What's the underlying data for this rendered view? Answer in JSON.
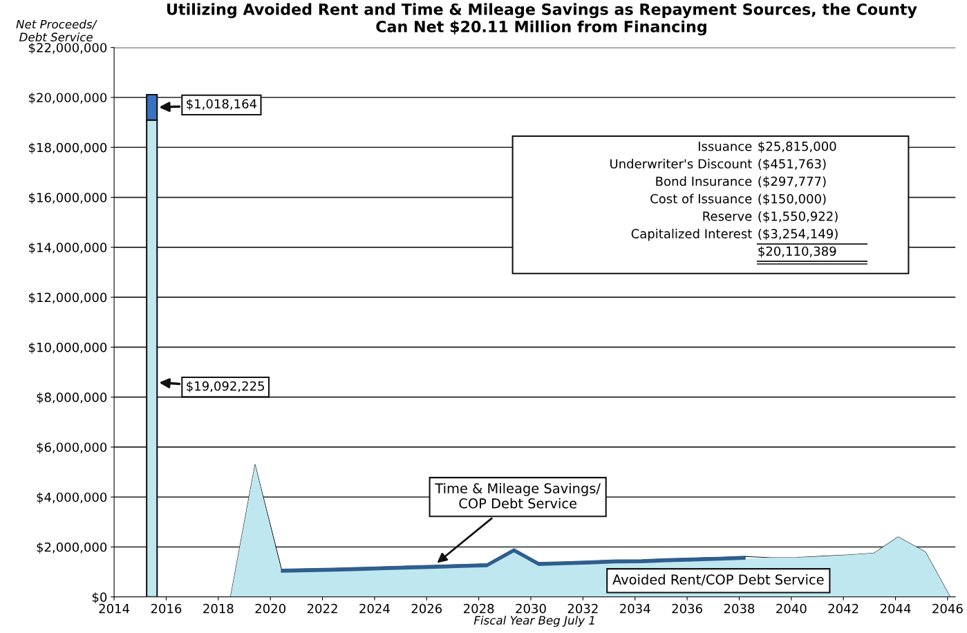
{
  "chart_data": {
    "type": "area",
    "title": "Utilizing Avoided Rent and Time & Mileage Savings as Repayment Sources, the County\nCan Net $20.11 Million from Financing",
    "ylabel": "Net Proceeds/\nDebt Service",
    "xlabel": "Fiscal Year Beg July 1",
    "stacked": true,
    "x": [
      2018.47,
      2019.41,
      2020.43,
      2021.4,
      2022.4,
      2023.38,
      2024.36,
      2025.35,
      2026.34,
      2027.33,
      2028.32,
      2029.35,
      2030.3,
      2031.3,
      2032.28,
      2033.27,
      2034.26,
      2035.25,
      2036.24,
      2037.23,
      2038.22,
      2039.21,
      2040.2,
      2041.19,
      2042.18,
      2043.17,
      2044.1,
      2045.15,
      2046.1
    ],
    "series": [
      {
        "name": "Avoided Rent/COP Debt Service",
        "color": "#bfe7f0",
        "values": [
          0,
          5300000,
          1000000,
          1020000,
          1040000,
          1070000,
          1100000,
          1130000,
          1160000,
          1190000,
          1220000,
          1820000,
          1270000,
          1300000,
          1330000,
          1370000,
          1380000,
          1420000,
          1450000,
          1480000,
          1520000,
          1570000,
          1580000,
          1630000,
          1680000,
          1750000,
          2400000,
          1800000,
          0
        ]
      },
      {
        "name": "Time & Mileage Savings/\nCOP Debt Service",
        "color": "#2f5f8f",
        "values": [
          null,
          null,
          100000,
          100000,
          100000,
          100000,
          100000,
          100000,
          100000,
          100000,
          100000,
          100000,
          100000,
          100000,
          100000,
          100000,
          100000,
          100000,
          100000,
          100000,
          100000,
          null,
          null,
          null,
          null,
          null,
          null,
          null,
          null
        ]
      },
      {
        "type": "bar",
        "x": [
          2015.45
        ],
        "color": "#bfe7f0",
        "values": [
          19092225
        ],
        "value_labels": [
          "$19,092,225"
        ]
      },
      {
        "type": "bar",
        "x": [
          2015.45
        ],
        "color": "#3a72c0",
        "values": [
          1018164
        ],
        "value_labels": [
          "$1,018,164"
        ]
      }
    ],
    "xlim": [
      2014,
      2046.3
    ],
    "xticks": [
      2014,
      2016,
      2018,
      2020,
      2022,
      2024,
      2026,
      2028,
      2030,
      2032,
      2034,
      2036,
      2038,
      2040,
      2042,
      2044,
      2046
    ],
    "ylim": [
      0,
      22000000
    ],
    "yticks": [
      {
        "value": 0,
        "label": "$0"
      },
      {
        "value": 2000000,
        "label": "$2,000,000"
      },
      {
        "value": 4000000,
        "label": "$4,000,000"
      },
      {
        "value": 6000000,
        "label": "$6,000,000"
      },
      {
        "value": 8000000,
        "label": "$8,000,000"
      },
      {
        "value": 10000000,
        "label": "$10,000,000"
      },
      {
        "value": 12000000,
        "label": "$12,000,000"
      },
      {
        "value": 14000000,
        "label": "$14,000,000"
      },
      {
        "value": 16000000,
        "label": "$16,000,000"
      },
      {
        "value": 18000000,
        "label": "$18,000,000"
      },
      {
        "value": 20000000,
        "label": "$20,000,000"
      },
      {
        "value": 22000000,
        "label": "$22,000,000"
      }
    ],
    "grid": "y",
    "legend": false,
    "annotations": [
      "Issuance",
      "$25,815,000",
      "Underwriter's Discount",
      "($451,763)",
      "Bond Insurance",
      "($297,777)",
      "Cost of Issuance",
      "($150,000)",
      "Reserve",
      "($1,550,922)",
      "Capitalized Interest",
      "($3,254,149)",
      "$20,110,389"
    ]
  }
}
